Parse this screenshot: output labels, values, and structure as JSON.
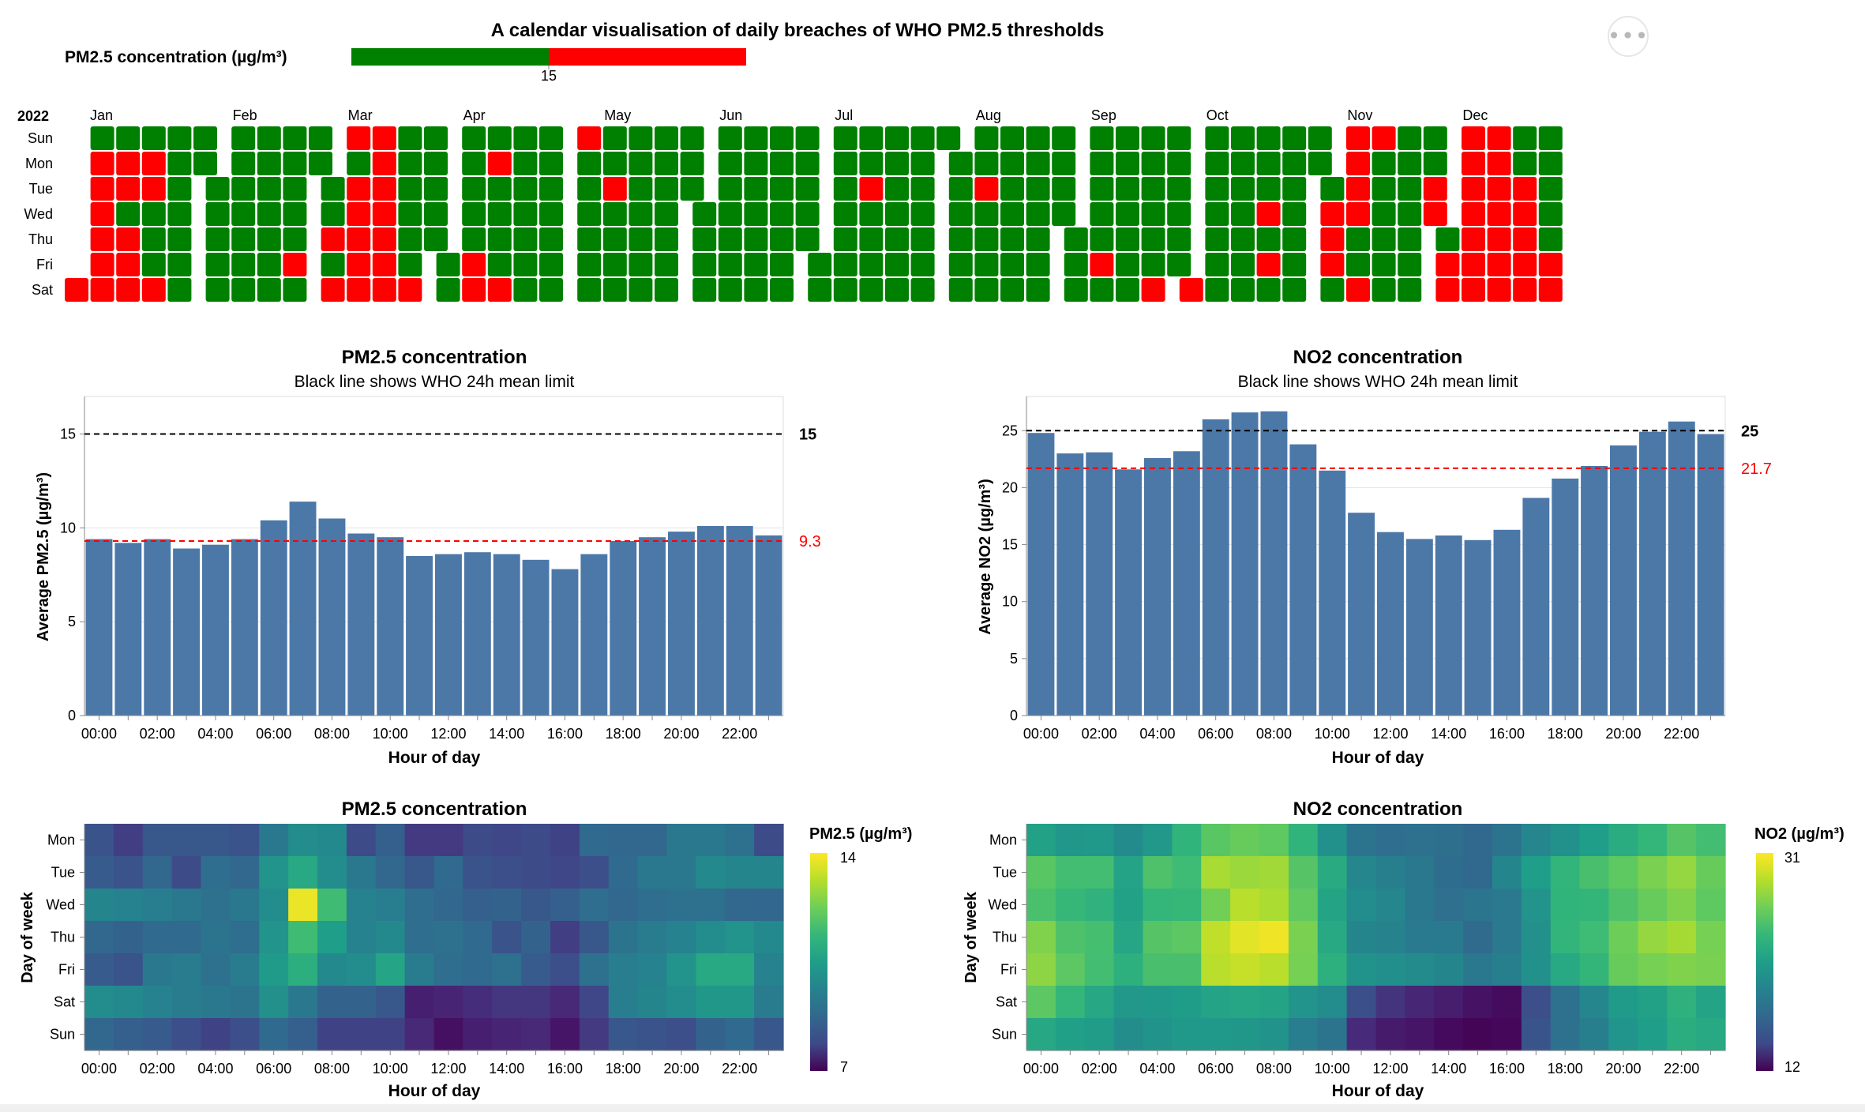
{
  "calendar": {
    "title": "A calendar visualisation of daily breaches of WHO PM2.5 thresholds",
    "legend_label": "PM2.5 concentration (µg/m³)",
    "legend_threshold_label": "15",
    "year_label": "2022",
    "colors": {
      "below": "#008000",
      "above": "#ff0000"
    },
    "weekday_labels": [
      "Sun",
      "Mon",
      "Tue",
      "Wed",
      "Thu",
      "Fri",
      "Sat"
    ],
    "month_labels": [
      "Jan",
      "Feb",
      "Mar",
      "Apr",
      "May",
      "Jun",
      "Jul",
      "Aug",
      "Sep",
      "Oct",
      "Nov",
      "Dec"
    ],
    "breach_dates": [
      "01-01",
      "01-03",
      "01-04",
      "01-05",
      "01-06",
      "01-07",
      "01-08",
      "01-10",
      "01-11",
      "01-13",
      "01-14",
      "01-15",
      "01-17",
      "01-18",
      "01-22",
      "02-25",
      "03-03",
      "03-05",
      "03-06",
      "03-08",
      "03-09",
      "03-10",
      "03-11",
      "03-12",
      "03-13",
      "03-14",
      "03-15",
      "03-16",
      "03-17",
      "03-18",
      "03-19",
      "03-26",
      "04-08",
      "04-09",
      "04-11",
      "04-16",
      "05-01",
      "05-10",
      "07-12",
      "08-09",
      "09-09",
      "09-24",
      "10-01",
      "10-19",
      "10-21",
      "11-02",
      "11-03",
      "11-04",
      "11-06",
      "11-07",
      "11-08",
      "11-09",
      "11-12",
      "11-13",
      "11-29",
      "11-30",
      "12-02",
      "12-03",
      "12-04",
      "12-05",
      "12-06",
      "12-07",
      "12-08",
      "12-09",
      "12-10",
      "12-11",
      "12-12",
      "12-13",
      "12-14",
      "12-15",
      "12-16",
      "12-17",
      "12-20",
      "12-21",
      "12-22",
      "12-23",
      "12-24",
      "12-30",
      "12-31"
    ]
  },
  "pm25_bar": {
    "title": "PM2.5 concentration",
    "subtitle": "Black line shows WHO 24h mean limit",
    "xlabel": "Hour of day",
    "ylabel": "Average PM2.5 (µg/m³)",
    "limit_label": "15",
    "mean_label": "9.3",
    "color": "#4c78a8"
  },
  "no2_bar": {
    "title": "NO2 concentration",
    "subtitle": "Black line shows WHO 24h mean limit",
    "xlabel": "Hour of day",
    "ylabel": "Average NO2 (µg/m³)",
    "limit_label": "25",
    "mean_label": "21.7",
    "color": "#4c78a8"
  },
  "pm25_heat": {
    "title": "PM2.5 concentration",
    "xlabel": "Hour of day",
    "ylabel": "Day of week",
    "legend_title": "PM2.5 (µg/m³)",
    "legend_max_label": "14",
    "legend_min_label": "7"
  },
  "no2_heat": {
    "title": "NO2 concentration",
    "xlabel": "Hour of day",
    "ylabel": "Day of week",
    "legend_title": "NO2 (µg/m³)",
    "legend_max_label": "31",
    "legend_min_label": "12"
  },
  "menu": {
    "more_label": "•••"
  },
  "chart_data": [
    {
      "type": "heatmap",
      "title": "A calendar visualisation of daily breaches of WHO PM2.5 thresholds",
      "year": 2022,
      "threshold": 15,
      "legend": "PM2.5 concentration (µg/m³)",
      "rows": [
        "Sun",
        "Mon",
        "Tue",
        "Wed",
        "Thu",
        "Fri",
        "Sat"
      ],
      "months": [
        "Jan",
        "Feb",
        "Mar",
        "Apr",
        "May",
        "Jun",
        "Jul",
        "Aug",
        "Sep",
        "Oct",
        "Nov",
        "Dec"
      ],
      "value_encoding": "red = daily mean above 15, green = at or below 15; breaching dates listed in calendar.breach_dates"
    },
    {
      "type": "bar",
      "title": "PM2.5 concentration",
      "subtitle": "Black line shows WHO 24h mean limit",
      "xlabel": "Hour of day",
      "ylabel": "Average PM2.5 (µg/m³)",
      "ylim": [
        0,
        17
      ],
      "yticks": [
        0,
        5,
        10,
        15
      ],
      "categories": [
        "00:00",
        "01:00",
        "02:00",
        "03:00",
        "04:00",
        "05:00",
        "06:00",
        "07:00",
        "08:00",
        "09:00",
        "10:00",
        "11:00",
        "12:00",
        "13:00",
        "14:00",
        "15:00",
        "16:00",
        "17:00",
        "18:00",
        "19:00",
        "20:00",
        "21:00",
        "22:00",
        "23:00"
      ],
      "tick_labels": [
        "00:00",
        "02:00",
        "04:00",
        "06:00",
        "08:00",
        "10:00",
        "12:00",
        "14:00",
        "16:00",
        "18:00",
        "20:00",
        "22:00"
      ],
      "values": [
        9.4,
        9.2,
        9.4,
        8.9,
        9.1,
        9.4,
        10.4,
        11.4,
        10.5,
        9.7,
        9.5,
        8.5,
        8.6,
        8.7,
        8.6,
        8.3,
        7.8,
        8.6,
        9.3,
        9.5,
        9.8,
        10.1,
        10.1,
        9.6
      ],
      "rules": [
        {
          "value": 15,
          "label": "15",
          "color": "#000000"
        },
        {
          "value": 9.3,
          "label": "9.3",
          "color": "#ff0000"
        }
      ]
    },
    {
      "type": "bar",
      "title": "NO2 concentration",
      "subtitle": "Black line shows WHO 24h mean limit",
      "xlabel": "Hour of day",
      "ylabel": "Average NO2 (µg/m³)",
      "ylim": [
        0,
        28
      ],
      "yticks": [
        0,
        5,
        10,
        15,
        20,
        25
      ],
      "categories": [
        "00:00",
        "01:00",
        "02:00",
        "03:00",
        "04:00",
        "05:00",
        "06:00",
        "07:00",
        "08:00",
        "09:00",
        "10:00",
        "11:00",
        "12:00",
        "13:00",
        "14:00",
        "15:00",
        "16:00",
        "17:00",
        "18:00",
        "19:00",
        "20:00",
        "21:00",
        "22:00",
        "23:00"
      ],
      "tick_labels": [
        "00:00",
        "02:00",
        "04:00",
        "06:00",
        "08:00",
        "10:00",
        "12:00",
        "14:00",
        "16:00",
        "18:00",
        "20:00",
        "22:00"
      ],
      "values": [
        24.8,
        23.0,
        23.1,
        21.6,
        22.6,
        23.2,
        26.0,
        26.6,
        26.7,
        23.8,
        21.5,
        17.8,
        16.1,
        15.5,
        15.8,
        15.4,
        16.3,
        19.1,
        20.8,
        21.9,
        23.7,
        24.9,
        25.8,
        24.7
      ],
      "rules": [
        {
          "value": 25,
          "label": "25",
          "color": "#000000"
        },
        {
          "value": 21.7,
          "label": "21.7",
          "color": "#ff0000"
        }
      ]
    },
    {
      "type": "heatmap",
      "title": "PM2.5 concentration",
      "xlabel": "Hour of day",
      "ylabel": "Day of week",
      "legend": "PM2.5 (µg/m³)",
      "color_range": [
        7,
        14
      ],
      "colormap": "viridis",
      "rows": [
        "Mon",
        "Tue",
        "Wed",
        "Thu",
        "Fri",
        "Sat",
        "Sun"
      ],
      "x_tick_labels": [
        "00:00",
        "02:00",
        "04:00",
        "06:00",
        "08:00",
        "10:00",
        "12:00",
        "14:00",
        "16:00",
        "18:00",
        "20:00",
        "22:00"
      ],
      "values": [
        [
          8.8,
          8.3,
          8.9,
          8.9,
          8.9,
          8.8,
          9.8,
          10.4,
          10.3,
          8.6,
          9.1,
          8.2,
          8.2,
          8.6,
          8.5,
          8.6,
          8.4,
          9.4,
          9.3,
          9.3,
          9.8,
          9.8,
          9.6,
          8.6
        ],
        [
          9.0,
          8.8,
          9.3,
          8.6,
          9.5,
          9.3,
          10.6,
          11.2,
          10.4,
          9.8,
          9.3,
          8.9,
          9.4,
          8.8,
          8.7,
          8.6,
          8.5,
          8.7,
          9.4,
          9.8,
          9.8,
          10.3,
          10.2,
          10.2
        ],
        [
          10.2,
          10.1,
          10.0,
          9.8,
          9.6,
          9.8,
          10.4,
          13.8,
          11.8,
          10.1,
          10.0,
          9.5,
          9.3,
          9.1,
          9.2,
          8.9,
          9.1,
          9.5,
          9.3,
          9.5,
          9.6,
          9.6,
          9.3,
          9.3
        ],
        [
          9.3,
          9.2,
          9.4,
          9.4,
          9.7,
          9.5,
          10.6,
          11.8,
          10.9,
          10.1,
          10.3,
          9.5,
          9.6,
          9.4,
          8.8,
          9.2,
          8.3,
          8.9,
          9.7,
          9.9,
          10.1,
          10.4,
          10.6,
          10.3
        ],
        [
          9.0,
          8.8,
          9.8,
          9.9,
          9.6,
          9.9,
          10.8,
          11.4,
          10.3,
          10.4,
          11.1,
          9.9,
          9.5,
          9.4,
          9.6,
          9.0,
          8.7,
          9.6,
          10.0,
          10.1,
          10.6,
          11.2,
          11.2,
          10.1
        ],
        [
          10.4,
          10.3,
          10.1,
          9.9,
          9.8,
          9.7,
          10.5,
          9.8,
          9.2,
          9.2,
          8.9,
          7.6,
          7.7,
          7.9,
          8.1,
          8.1,
          7.8,
          8.5,
          10.0,
          10.2,
          10.4,
          10.7,
          10.7,
          9.9
        ],
        [
          9.3,
          9.1,
          9.0,
          8.7,
          8.4,
          8.7,
          9.4,
          9.1,
          8.4,
          8.4,
          8.4,
          7.8,
          7.3,
          7.6,
          7.7,
          7.8,
          7.4,
          8.2,
          8.9,
          8.8,
          8.7,
          9.2,
          9.4,
          8.9
        ]
      ]
    },
    {
      "type": "heatmap",
      "title": "NO2 concentration",
      "xlabel": "Hour of day",
      "ylabel": "Day of week",
      "legend": "NO2 (µg/m³)",
      "color_range": [
        12,
        31
      ],
      "colormap": "viridis",
      "rows": [
        "Mon",
        "Tue",
        "Wed",
        "Thu",
        "Fri",
        "Sat",
        "Sun"
      ],
      "x_tick_labels": [
        "00:00",
        "02:00",
        "04:00",
        "06:00",
        "08:00",
        "10:00",
        "12:00",
        "14:00",
        "16:00",
        "18:00",
        "20:00",
        "22:00"
      ],
      "values": [
        [
          22.8,
          22.0,
          22.2,
          21.1,
          22.1,
          24.3,
          26.0,
          26.5,
          26.2,
          24.3,
          21.6,
          19.3,
          18.8,
          19.1,
          18.9,
          18.4,
          19.2,
          20.8,
          21.6,
          22.6,
          23.7,
          24.6,
          25.9,
          25.2
        ],
        [
          26.0,
          25.2,
          25.2,
          23.0,
          25.6,
          25.0,
          28.5,
          28.1,
          28.3,
          25.9,
          23.6,
          20.8,
          20.2,
          19.6,
          18.7,
          18.4,
          20.7,
          22.6,
          24.4,
          25.4,
          26.2,
          27.1,
          27.9,
          26.5
        ],
        [
          25.5,
          24.7,
          24.2,
          22.8,
          24.6,
          24.7,
          26.9,
          29.0,
          28.6,
          26.3,
          23.1,
          21.2,
          20.8,
          19.6,
          19.0,
          19.4,
          19.7,
          21.8,
          24.3,
          24.5,
          25.6,
          26.5,
          27.3,
          26.2
        ],
        [
          27.3,
          25.6,
          25.3,
          23.2,
          25.9,
          26.1,
          29.2,
          30.2,
          30.6,
          27.1,
          23.4,
          20.7,
          20.5,
          19.8,
          19.8,
          18.6,
          19.7,
          21.5,
          24.4,
          25.0,
          26.7,
          27.9,
          28.4,
          27.0
        ],
        [
          27.7,
          26.1,
          25.2,
          24.0,
          25.4,
          25.4,
          29.0,
          29.4,
          29.0,
          27.0,
          24.0,
          21.7,
          21.4,
          21.1,
          20.7,
          19.6,
          20.2,
          21.6,
          23.4,
          24.5,
          26.5,
          27.0,
          27.3,
          27.1
        ],
        [
          26.1,
          24.6,
          23.3,
          22.1,
          22.2,
          22.5,
          23.0,
          23.2,
          23.1,
          21.8,
          21.2,
          16.7,
          14.9,
          14.0,
          13.5,
          12.9,
          12.6,
          16.6,
          19.1,
          20.8,
          22.3,
          22.8,
          24.1,
          23.0
        ],
        [
          23.3,
          22.7,
          22.4,
          21.3,
          21.7,
          22.2,
          22.2,
          22.0,
          21.7,
          20.0,
          19.3,
          14.3,
          13.4,
          13.1,
          12.5,
          12.2,
          12.3,
          17.0,
          19.1,
          20.2,
          21.9,
          22.6,
          23.8,
          23.4
        ]
      ]
    }
  ]
}
